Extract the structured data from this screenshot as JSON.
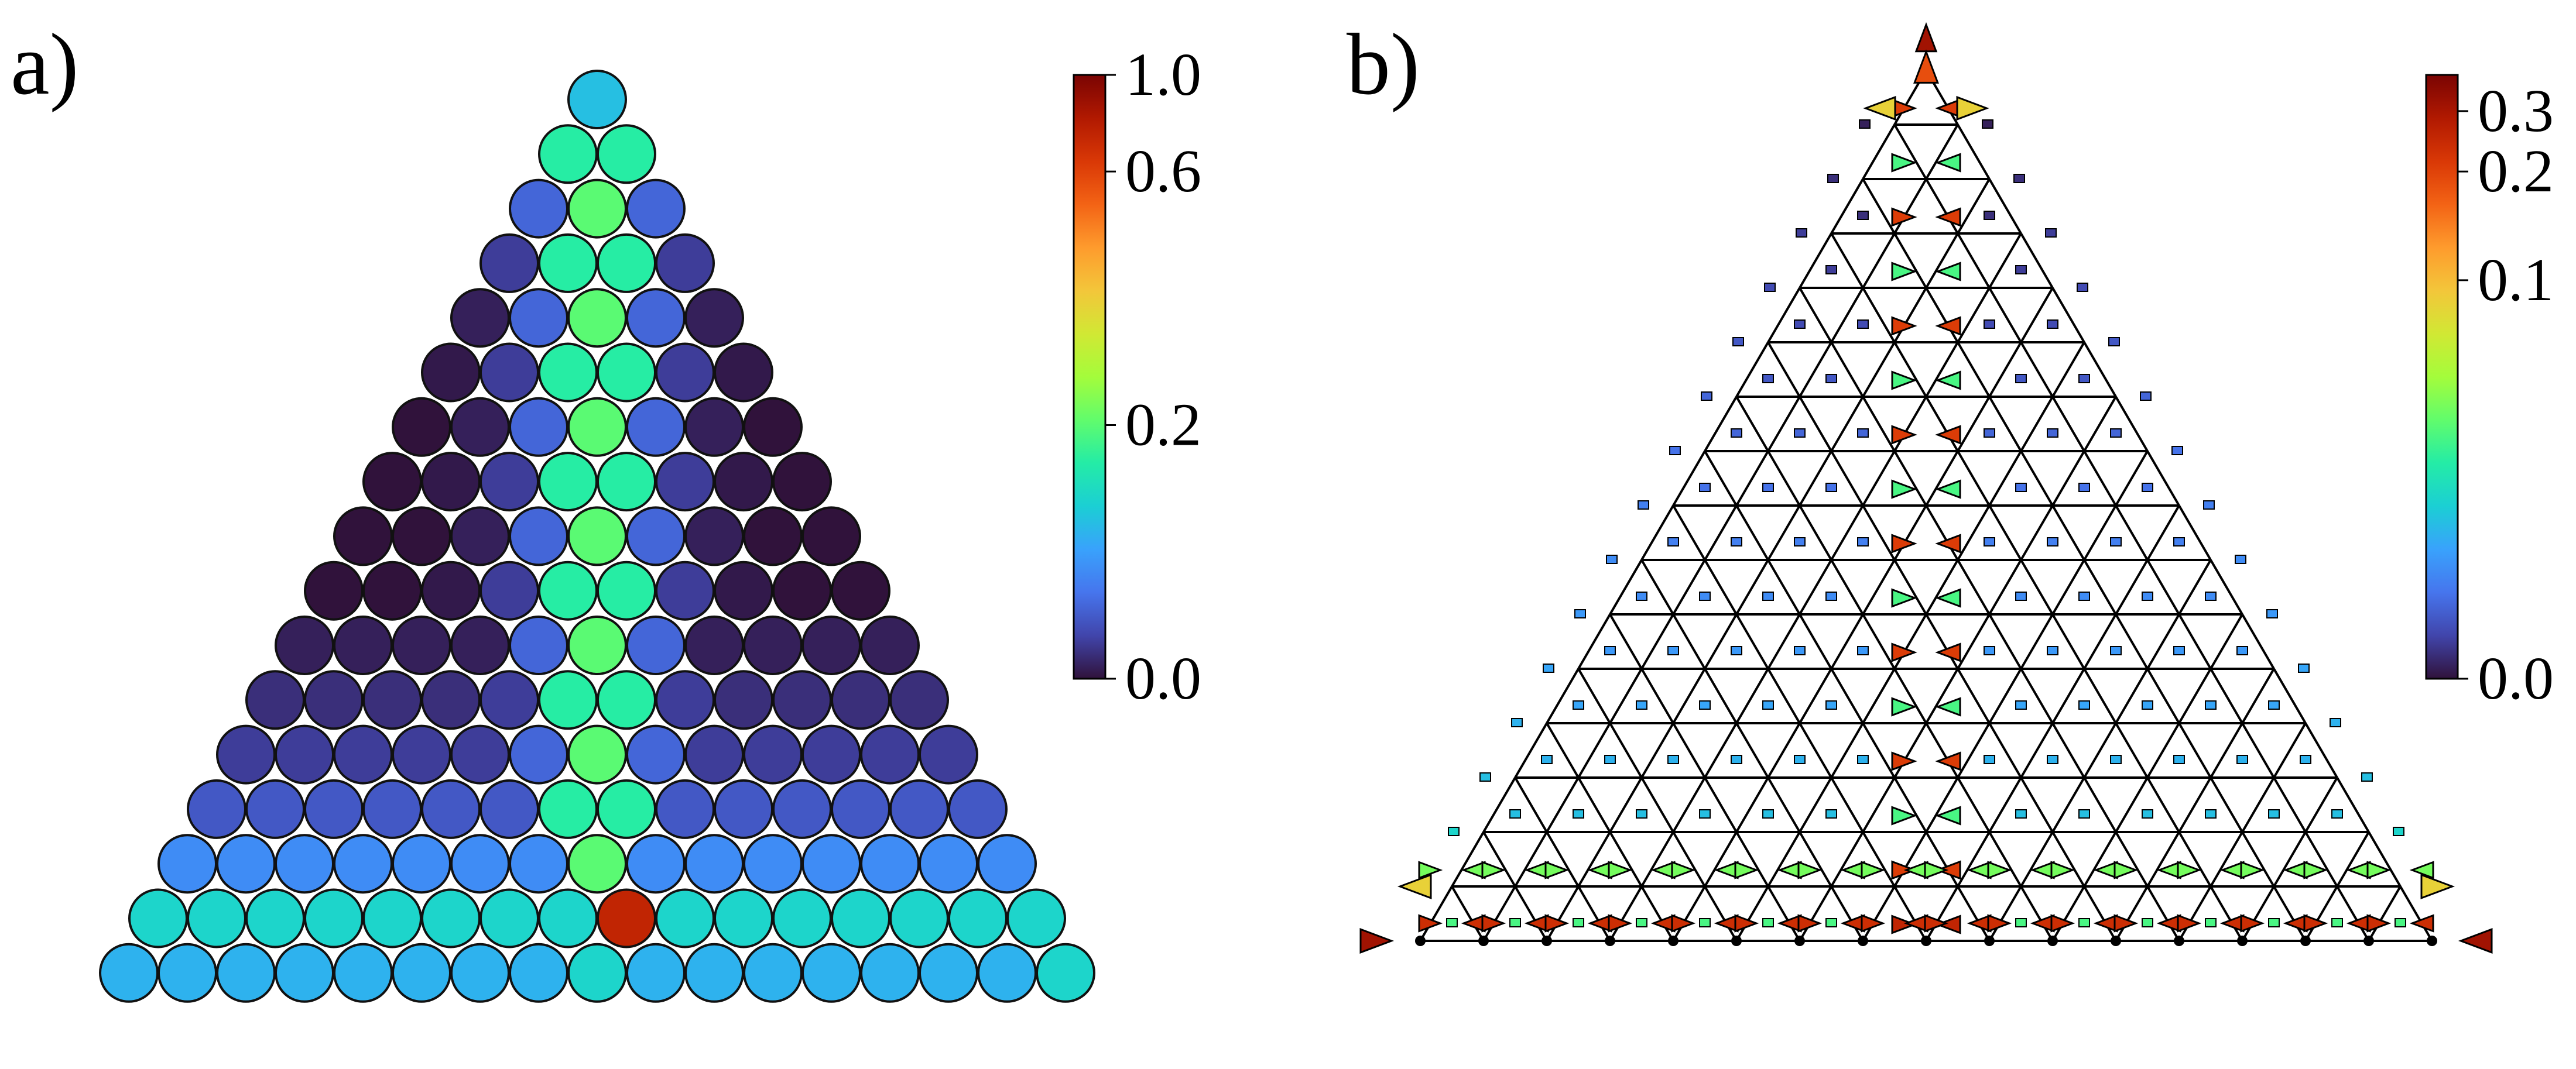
{
  "figure": {
    "panels": [
      {
        "label": "a)"
      },
      {
        "label": "b)"
      }
    ]
  },
  "colormap": {
    "name": "turbo",
    "stops": [
      "#30123b",
      "#4145ab",
      "#4675ed",
      "#39a2fc",
      "#1bcfd4",
      "#24eca6",
      "#61fc6c",
      "#a4fc3b",
      "#d1e834",
      "#f3c63a",
      "#fe9b2d",
      "#f36315",
      "#d93806",
      "#b11901",
      "#7a0403"
    ]
  },
  "chart_data": [
    {
      "panel": "a)",
      "type": "heatmap",
      "title": "",
      "layout": "triangular-close-packed",
      "rows": 17,
      "note": "rows listed top to bottom, row i has i+1 sites; values are color levels (0 to 1)",
      "values": [
        [
          0.26
        ],
        [
          0.36,
          0.36
        ],
        [
          0.12,
          0.42,
          0.12
        ],
        [
          0.06,
          0.36,
          0.36,
          0.06
        ],
        [
          0.02,
          0.12,
          0.42,
          0.12,
          0.02
        ],
        [
          0.01,
          0.06,
          0.36,
          0.36,
          0.06,
          0.01
        ],
        [
          0.0,
          0.02,
          0.12,
          0.42,
          0.12,
          0.02,
          0.0
        ],
        [
          0.0,
          0.01,
          0.06,
          0.36,
          0.36,
          0.06,
          0.01,
          0.0
        ],
        [
          0.0,
          0.0,
          0.02,
          0.12,
          0.42,
          0.12,
          0.02,
          0.0,
          0.0
        ],
        [
          0.0,
          0.0,
          0.01,
          0.06,
          0.36,
          0.36,
          0.06,
          0.01,
          0.0,
          0.0
        ],
        [
          0.02,
          0.02,
          0.02,
          0.02,
          0.12,
          0.42,
          0.12,
          0.02,
          0.02,
          0.02,
          0.02
        ],
        [
          0.04,
          0.04,
          0.04,
          0.04,
          0.06,
          0.36,
          0.36,
          0.06,
          0.04,
          0.04,
          0.04,
          0.04
        ],
        [
          0.06,
          0.06,
          0.06,
          0.06,
          0.06,
          0.12,
          0.42,
          0.12,
          0.06,
          0.06,
          0.06,
          0.06,
          0.06
        ],
        [
          0.1,
          0.1,
          0.1,
          0.1,
          0.1,
          0.1,
          0.36,
          0.36,
          0.1,
          0.1,
          0.1,
          0.1,
          0.1,
          0.1
        ],
        [
          0.18,
          0.18,
          0.18,
          0.18,
          0.18,
          0.18,
          0.18,
          0.42,
          0.18,
          0.18,
          0.18,
          0.18,
          0.18,
          0.18,
          0.18
        ],
        [
          0.3,
          0.3,
          0.3,
          0.3,
          0.3,
          0.3,
          0.3,
          0.3,
          0.9,
          0.3,
          0.3,
          0.3,
          0.3,
          0.3,
          0.3,
          0.3
        ],
        [
          0.24,
          0.24,
          0.24,
          0.24,
          0.24,
          0.24,
          0.24,
          0.24,
          0.3,
          0.24,
          0.24,
          0.24,
          0.24,
          0.24,
          0.24,
          0.24,
          0.3
        ]
      ],
      "colorbar": {
        "ticks": [
          "0.0",
          "0.2",
          "0.6",
          "1.0"
        ],
        "tick_positions": [
          0,
          0.42,
          0.84,
          1.0
        ],
        "range": [
          0,
          1
        ]
      }
    },
    {
      "panel": "b)",
      "type": "heatmap",
      "title": "",
      "layout": "triangular-lattice-with-arrows",
      "rows": 17,
      "note": "rows listed top to bottom; values are color levels (0 to 1) of the marks on each row: bulk square markers, central arrow pairs, and edge arrows",
      "bulk_square_values": [
        0.0,
        0.02,
        0.04,
        0.06,
        0.08,
        0.1,
        0.12,
        0.14,
        0.16,
        0.18,
        0.2,
        0.22,
        0.24,
        0.26,
        0.3,
        0.4,
        0.5
      ],
      "center_arrow_values": [
        0.9,
        0.85,
        0.4,
        0.85,
        0.4,
        0.85,
        0.4,
        0.85,
        0.4,
        0.85,
        0.4,
        0.85,
        0.4,
        0.85,
        0.4,
        0.85,
        0.9
      ],
      "edge_arrow_values": {
        "apex": 0.95,
        "second_row": 0.62,
        "bottom_row": 0.88,
        "lower_corners": 0.95
      },
      "colorbar": {
        "ticks": [
          "0.0",
          "0.1",
          "0.2",
          "0.3"
        ],
        "tick_positions": [
          0,
          0.66,
          0.84,
          0.94
        ],
        "range": [
          0,
          0.33
        ]
      }
    }
  ]
}
